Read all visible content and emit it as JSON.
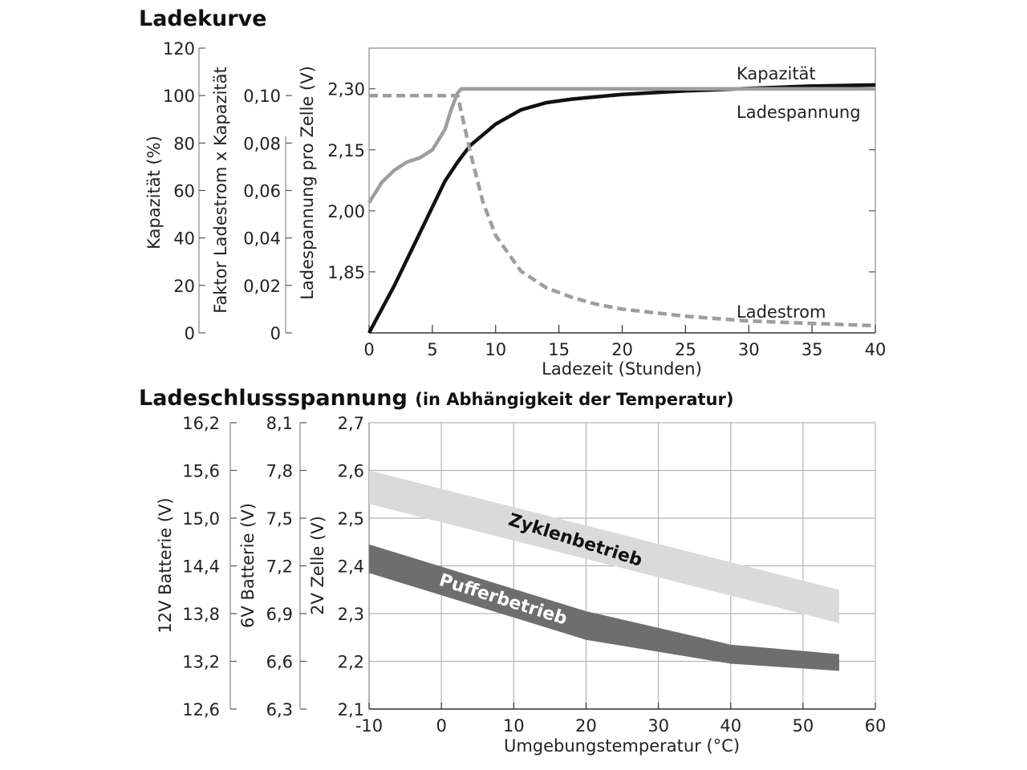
{
  "chart_data": [
    {
      "type": "line",
      "title": "Ladekurve",
      "xlabel": "Ladezeit (Stunden)",
      "xlim": [
        0,
        40
      ],
      "x_ticks": [
        "0",
        "5",
        "10",
        "15",
        "20",
        "25",
        "30",
        "35",
        "40"
      ],
      "grid": "ticks only",
      "y_axes": [
        {
          "label": "Kapazität (%)",
          "ylim": [
            0,
            120
          ],
          "ticks": [
            "0",
            "20",
            "40",
            "60",
            "80",
            "100",
            "120"
          ]
        },
        {
          "label": "Faktor Ladestrom x Kapazität",
          "ylim": [
            0,
            0.12
          ],
          "ticks": [
            "0",
            "0,02",
            "0,04",
            "0,06",
            "0,08",
            "0,10"
          ]
        },
        {
          "label": "Ladespannung pro Zelle (V)",
          "ylim": [
            1.7,
            2.4
          ],
          "ticks": [
            "1,85",
            "2,00",
            "2,15",
            "2,30"
          ]
        }
      ],
      "series": [
        {
          "name": "Kapazität",
          "axis": "Kapazität (%)",
          "color": "#111111",
          "style": "solid",
          "x": [
            0,
            2,
            4,
            6,
            7,
            8,
            10,
            12,
            14,
            16,
            18,
            20,
            25,
            30,
            35,
            40
          ],
          "y": [
            0,
            20,
            42,
            64,
            72,
            79,
            88,
            94,
            97,
            98.5,
            99.5,
            100.5,
            102,
            103,
            104,
            104.5
          ]
        },
        {
          "name": "Ladespannung",
          "axis": "Ladespannung pro Zelle (V)",
          "color": "#9e9e9e",
          "style": "solid",
          "x": [
            0,
            1,
            2,
            3,
            4,
            5,
            6,
            6.5,
            7,
            7.3,
            10,
            20,
            30,
            40
          ],
          "y": [
            2.02,
            2.07,
            2.1,
            2.12,
            2.13,
            2.15,
            2.2,
            2.25,
            2.29,
            2.3,
            2.3,
            2.3,
            2.3,
            2.3
          ]
        },
        {
          "name": "Ladestrom",
          "axis": "Faktor Ladestrom x Kapazität",
          "color": "#9e9e9e",
          "style": "dashed",
          "x": [
            0,
            7,
            8,
            9,
            10,
            12,
            14,
            16,
            18,
            20,
            25,
            30,
            35,
            40
          ],
          "y": [
            0.1,
            0.1,
            0.076,
            0.055,
            0.041,
            0.026,
            0.019,
            0.015,
            0.012,
            0.01,
            0.007,
            0.005,
            0.004,
            0.003
          ]
        }
      ]
    },
    {
      "type": "area",
      "title": "Ladeschlussspannung",
      "subtitle": "(in Abhängigkeit der Temperatur)",
      "xlabel": "Umgebungstemperatur (°C)",
      "xlim": [
        -10,
        60
      ],
      "x_ticks": [
        "-10",
        "0",
        "10",
        "20",
        "30",
        "40",
        "50",
        "60"
      ],
      "grid": true,
      "y_axes": [
        {
          "label": "12V Batterie (V)",
          "ylim": [
            12.6,
            16.2
          ],
          "ticks": [
            "12,6",
            "13,2",
            "13,8",
            "14,4",
            "15,0",
            "15,6",
            "16,2"
          ]
        },
        {
          "label": "6V Batterie (V)",
          "ylim": [
            6.3,
            8.1
          ],
          "ticks": [
            "6,3",
            "6,6",
            "6,9",
            "7,2",
            "7,5",
            "7,8",
            "8,1"
          ]
        },
        {
          "label": "2V Zelle (V)",
          "ylim": [
            2.1,
            2.7
          ],
          "ticks": [
            "2,1",
            "2,2",
            "2,3",
            "2,4",
            "2,5",
            "2,6",
            "2,7"
          ]
        }
      ],
      "series": [
        {
          "name": "Zyklenbetrieb",
          "color": "#dadada",
          "x": [
            -10,
            55
          ],
          "upper": [
            2.6,
            2.35
          ],
          "lower": [
            2.53,
            2.28
          ]
        },
        {
          "name": "Pufferbetrieb",
          "color": "#6e6e6e",
          "x": [
            -10,
            20,
            40,
            55
          ],
          "upper": [
            2.445,
            2.305,
            2.235,
            2.215
          ],
          "lower": [
            2.385,
            2.245,
            2.195,
            2.18
          ]
        }
      ]
    }
  ]
}
